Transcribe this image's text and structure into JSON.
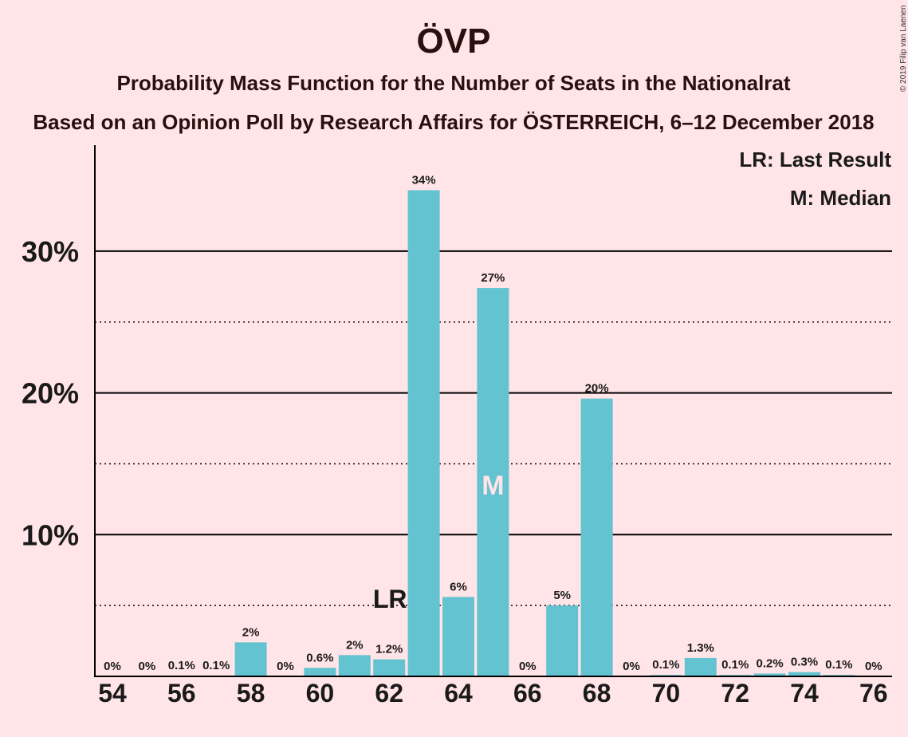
{
  "title": "ÖVP",
  "subtitle": "Probability Mass Function for the Number of Seats in the Nationalrat",
  "subtitle2": "Based on an Opinion Poll by Research Affairs for ÖSTERREICH, 6–12 December 2018",
  "copyright": "© 2019 Filip van Laenen",
  "legend": {
    "last_result": "LR: Last Result",
    "median": "M: Median"
  },
  "markers": {
    "last_result_label": "LR",
    "median_label": "M"
  },
  "colors": {
    "bar": "#63c3d0",
    "background": "#ffe4e8",
    "text": "#1a1a1a"
  },
  "chart_data": {
    "type": "bar",
    "x": [
      54,
      55,
      56,
      57,
      58,
      59,
      60,
      61,
      62,
      63,
      64,
      65,
      66,
      67,
      68,
      69,
      70,
      71,
      72,
      73,
      74,
      75,
      76
    ],
    "values": [
      0,
      0,
      0.05,
      0.05,
      2.4,
      0,
      0.6,
      1.5,
      1.2,
      34.3,
      5.6,
      27.4,
      0,
      5.0,
      19.6,
      0,
      0.1,
      1.3,
      0.1,
      0.2,
      0.3,
      0.1,
      0
    ],
    "labels": [
      "0%",
      "0%",
      "0.1%",
      "0.1%",
      "2%",
      "0%",
      "0.6%",
      "2%",
      "1.2%",
      "34%",
      "6%",
      "27%",
      "0%",
      "5%",
      "20%",
      "0%",
      "0.1%",
      "1.3%",
      "0.1%",
      "0.2%",
      "0.3%",
      "0.1%",
      "0%"
    ],
    "xticks": [
      54,
      56,
      58,
      60,
      62,
      64,
      66,
      68,
      70,
      72,
      74,
      76
    ],
    "yticks": [
      {
        "v": 10,
        "label": "10%"
      },
      {
        "v": 20,
        "label": "20%"
      },
      {
        "v": 30,
        "label": "30%"
      }
    ],
    "ygrid_minor": [
      5,
      15,
      25
    ],
    "ylim": [
      0,
      37.5
    ],
    "last_result_seat": 62,
    "median_seat": 65,
    "grid": true,
    "legend_position": "top-right"
  }
}
